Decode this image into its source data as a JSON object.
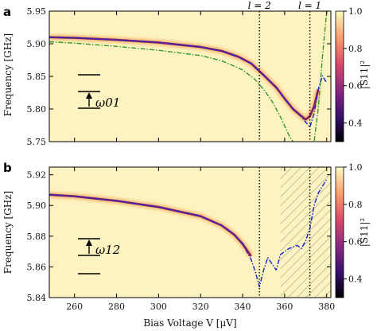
{
  "chart_data": [
    {
      "panel": "a",
      "type": "heatmap",
      "xlabel": "Bias Voltage V [μV]",
      "ylabel": "Frequency [GHz]",
      "xlim": [
        248,
        382
      ],
      "ylim": [
        5.75,
        5.95
      ],
      "yticks": [
        "5.75",
        "5.80",
        "5.85",
        "5.90",
        "5.95"
      ],
      "vlines": [
        {
          "x": 348,
          "label": "l = 2"
        },
        {
          "x": 372,
          "label": "l = 1"
        }
      ],
      "level_label": "ω01",
      "colorbar": {
        "label": "|S11|²",
        "range": [
          0.3,
          1.0
        ],
        "ticks": [
          "0.4",
          "0.6",
          "0.8",
          "1.0"
        ]
      },
      "series": [
        {
          "name": "",
          "style": "measured resonance (bright ridge)",
          "x": [
            248,
            260,
            280,
            300,
            320,
            330,
            338,
            344,
            350,
            356,
            360,
            364,
            368,
            370,
            372,
            374,
            376
          ],
          "y": [
            5.91,
            5.909,
            5.906,
            5.902,
            5.895,
            5.889,
            5.88,
            5.87,
            5.852,
            5.833,
            5.816,
            5.8,
            5.789,
            5.784,
            5.789,
            5.804,
            5.83
          ]
        },
        {
          "name": "",
          "style": "blue dash-dot",
          "x": [
            248,
            260,
            280,
            300,
            320,
            330,
            338,
            344,
            350,
            356,
            360,
            364,
            368,
            370,
            372,
            374,
            376,
            378,
            380
          ],
          "y": [
            5.91,
            5.909,
            5.906,
            5.902,
            5.895,
            5.889,
            5.88,
            5.87,
            5.852,
            5.833,
            5.816,
            5.8,
            5.788,
            5.78,
            5.772,
            5.793,
            5.83,
            5.851,
            5.84
          ]
        },
        {
          "name": "",
          "style": "green dash-dot",
          "x": [
            248,
            260,
            280,
            300,
            320,
            330,
            340,
            346,
            350,
            354,
            358,
            362,
            366,
            370,
            374,
            376,
            378,
            380
          ],
          "y": [
            5.903,
            5.901,
            5.896,
            5.89,
            5.882,
            5.874,
            5.86,
            5.845,
            5.83,
            5.812,
            5.788,
            5.76,
            5.74,
            5.73,
            5.75,
            5.8,
            5.88,
            5.95
          ]
        }
      ]
    },
    {
      "panel": "b",
      "type": "heatmap",
      "xlabel": "Bias Voltage V [μV]",
      "ylabel": "Frequency [GHz]",
      "xlim": [
        248,
        382
      ],
      "ylim": [
        5.84,
        5.925
      ],
      "xticks": [
        "260",
        "280",
        "300",
        "320",
        "340",
        "360",
        "380"
      ],
      "yticks": [
        "5.84",
        "5.86",
        "5.88",
        "5.90",
        "5.92"
      ],
      "vlines": [
        {
          "x": 348
        },
        {
          "x": 372
        }
      ],
      "hatched_region": [
        358,
        382
      ],
      "level_label": "ω12",
      "colorbar": {
        "label": "|S11|²",
        "range": [
          0.3,
          1.0
        ],
        "ticks": [
          "0.4",
          "0.6",
          "0.8",
          "1.0"
        ]
      },
      "series": [
        {
          "name": "",
          "style": "measured resonance (bright ridge)",
          "x": [
            248,
            260,
            280,
            300,
            320,
            330,
            336,
            340,
            344
          ],
          "y": [
            5.907,
            5.906,
            5.903,
            5.899,
            5.893,
            5.887,
            5.881,
            5.875,
            5.867
          ]
        },
        {
          "name": "",
          "style": "blue dash-dot",
          "x": [
            248,
            260,
            280,
            300,
            320,
            330,
            336,
            340,
            344,
            346,
            348,
            350,
            352,
            354,
            356,
            358,
            362,
            366,
            368,
            370,
            372,
            374,
            376,
            380
          ],
          "y": [
            5.907,
            5.906,
            5.903,
            5.899,
            5.893,
            5.887,
            5.881,
            5.875,
            5.865,
            5.857,
            5.847,
            5.858,
            5.866,
            5.862,
            5.858,
            5.868,
            5.872,
            5.874,
            5.872,
            5.877,
            5.885,
            5.9,
            5.908,
            5.917
          ]
        }
      ]
    }
  ]
}
